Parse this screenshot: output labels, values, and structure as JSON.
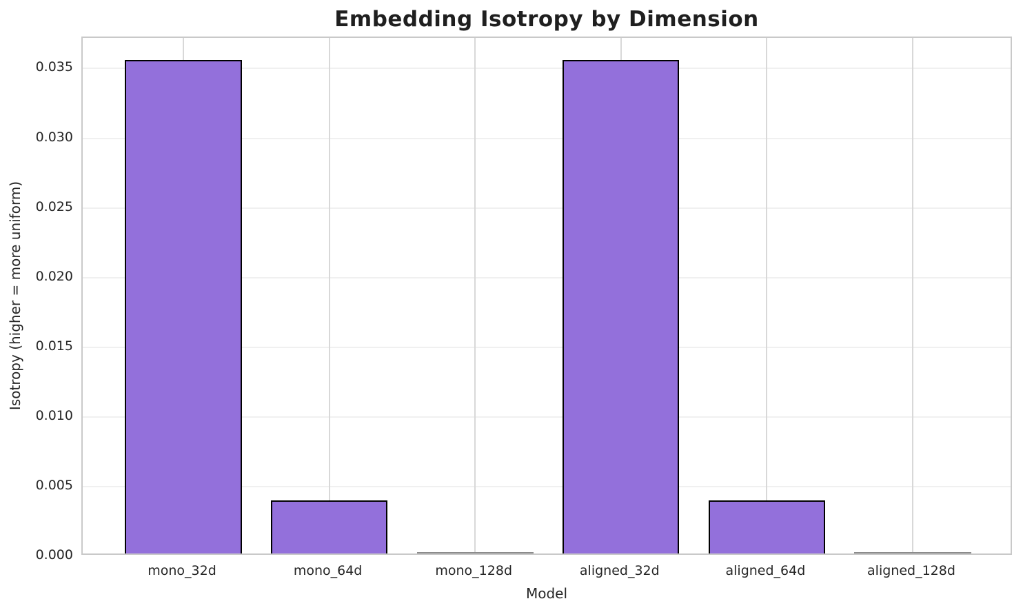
{
  "chart_data": {
    "type": "bar",
    "title": "Embedding Isotropy by Dimension",
    "xlabel": "Model",
    "ylabel": "Isotropy (higher = more uniform)",
    "categories": [
      "mono_32d",
      "mono_64d",
      "mono_128d",
      "aligned_32d",
      "aligned_64d",
      "aligned_128d"
    ],
    "values": [
      0.0354,
      0.0038,
      5e-05,
      0.0354,
      0.0038,
      5e-05
    ],
    "ylim": [
      0,
      0.0372
    ],
    "yticks": [
      0.0,
      0.005,
      0.01,
      0.015,
      0.02,
      0.025,
      0.03,
      0.035
    ],
    "ytick_labels": [
      "0.000",
      "0.005",
      "0.010",
      "0.015",
      "0.020",
      "0.025",
      "0.030",
      "0.035"
    ],
    "xlim_slots": {
      "lower_pad": 0.69,
      "upper_pad": 0.69,
      "bar_width": 0.8
    },
    "grid": "both",
    "legend": "none",
    "colors": {
      "bar_fill": "#9370DB",
      "bar_edge": "#000000",
      "near_zero_bar": "#8c8c8c",
      "grid_h": "#f0f0f0",
      "grid_v": "#d8d8d8",
      "spine": "#c9c9c9",
      "text": "#262626",
      "title_text": "#1f1f1f",
      "background": "#ffffff"
    }
  }
}
